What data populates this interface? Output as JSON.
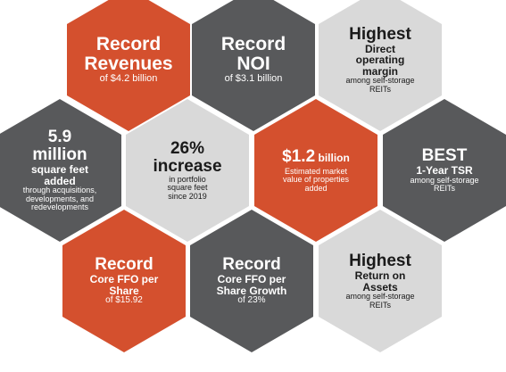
{
  "colors": {
    "orange": "#d4502e",
    "dark": "#58595b",
    "light": "#d9d9d9"
  },
  "hexes": [
    {
      "id": "record-revenues",
      "fill": "orange",
      "lines": [
        {
          "text": "Record",
          "size": 21,
          "bold": true
        },
        {
          "text": "Revenues",
          "size": 21,
          "bold": true
        },
        {
          "text": "of $4.2 billion",
          "size": 11,
          "bold": false
        }
      ]
    },
    {
      "id": "record-noi",
      "fill": "dark",
      "lines": [
        {
          "text": "Record",
          "size": 21,
          "bold": true
        },
        {
          "text": "NOI",
          "size": 21,
          "bold": true
        },
        {
          "text": "of $3.1 billion",
          "size": 11,
          "bold": false
        }
      ]
    },
    {
      "id": "highest-margin",
      "fill": "light",
      "lines": [
        {
          "text": "Highest",
          "size": 19,
          "bold": true
        },
        {
          "text": "Direct",
          "size": 12,
          "bold": true
        },
        {
          "text": "operating",
          "size": 12,
          "bold": true
        },
        {
          "text": "margin",
          "size": 12,
          "bold": true
        },
        {
          "text": "among self-storage",
          "size": 9,
          "bold": false
        },
        {
          "text": "REITs",
          "size": 9,
          "bold": false
        }
      ]
    },
    {
      "id": "square-feet-added",
      "fill": "dark",
      "lines": [
        {
          "text": "5.9",
          "size": 19,
          "bold": true
        },
        {
          "text": "million",
          "size": 19,
          "bold": true
        },
        {
          "text": "square feet",
          "size": 12,
          "bold": true
        },
        {
          "text": "added",
          "size": 12,
          "bold": true
        },
        {
          "text": "through acquisitions,",
          "size": 9,
          "bold": false
        },
        {
          "text": "developments, and",
          "size": 9,
          "bold": false
        },
        {
          "text": "redevelopments",
          "size": 9,
          "bold": false
        }
      ]
    },
    {
      "id": "portfolio-increase",
      "fill": "light",
      "lines": [
        {
          "text": "26%",
          "size": 19,
          "bold": true
        },
        {
          "text": "increase",
          "size": 19,
          "bold": true
        },
        {
          "text": "in portfolio",
          "size": 9,
          "bold": false
        },
        {
          "text": "square feet",
          "size": 9,
          "bold": false
        },
        {
          "text": "since 2019",
          "size": 9,
          "bold": false
        }
      ]
    },
    {
      "id": "property-value-added",
      "fill": "orange",
      "lines": [
        {
          "parts": [
            {
              "text": "$1.2",
              "size": 19,
              "bold": true
            },
            {
              "text": " billion",
              "size": 12,
              "bold": true
            }
          ]
        },
        {
          "text": "Estimated market",
          "size": 9,
          "bold": false
        },
        {
          "text": "value of properties",
          "size": 9,
          "bold": false
        },
        {
          "text": "added",
          "size": 9,
          "bold": false
        }
      ]
    },
    {
      "id": "best-tsr",
      "fill": "dark",
      "lines": [
        {
          "text": "BEST",
          "size": 19,
          "bold": true
        },
        {
          "text": "1-Year TSR",
          "size": 12,
          "bold": true
        },
        {
          "text": "among self-storage",
          "size": 9,
          "bold": false
        },
        {
          "text": "REITs",
          "size": 9,
          "bold": false
        }
      ]
    },
    {
      "id": "record-core-ffo",
      "fill": "orange",
      "lines": [
        {
          "text": "Record",
          "size": 19,
          "bold": true
        },
        {
          "text": "Core FFO per",
          "size": 12,
          "bold": true
        },
        {
          "text": "Share",
          "size": 12,
          "bold": true
        },
        {
          "text": "of $15.92",
          "size": 10,
          "bold": false
        }
      ]
    },
    {
      "id": "record-ffo-growth",
      "fill": "dark",
      "lines": [
        {
          "text": "Record",
          "size": 19,
          "bold": true
        },
        {
          "text": "Core FFO per",
          "size": 12,
          "bold": true
        },
        {
          "text": "Share Growth",
          "size": 12,
          "bold": true
        },
        {
          "text": "of 23%",
          "size": 10,
          "bold": false
        }
      ]
    },
    {
      "id": "highest-return",
      "fill": "light",
      "lines": [
        {
          "text": "Highest",
          "size": 19,
          "bold": true
        },
        {
          "text": "Return on",
          "size": 12,
          "bold": true
        },
        {
          "text": "Assets",
          "size": 12,
          "bold": true
        },
        {
          "text": "among self-storage",
          "size": 9,
          "bold": false
        },
        {
          "text": "REITs",
          "size": 9,
          "bold": false
        }
      ]
    }
  ]
}
